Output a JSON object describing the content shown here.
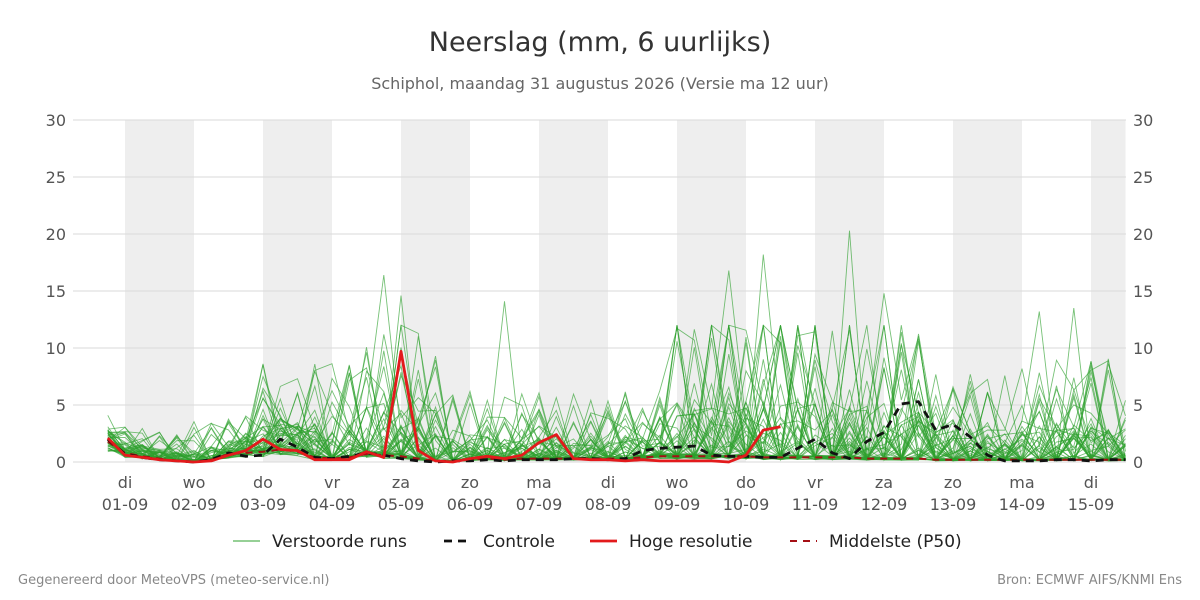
{
  "chart_data": {
    "type": "line",
    "title": "Neerslag (mm, 6 uurlijks)",
    "subtitle": "Schiphol, maandag 31 augustus 2026 (Versie ma 12 uur)",
    "ylim": [
      0,
      30
    ],
    "yticks": [
      0,
      5,
      10,
      15,
      20,
      25,
      30
    ],
    "xlim": [
      -0.25,
      14.5
    ],
    "x_ticks": [
      {
        "day": "di",
        "date": "01-09"
      },
      {
        "day": "wo",
        "date": "02-09"
      },
      {
        "day": "do",
        "date": "03-09"
      },
      {
        "day": "vr",
        "date": "04-09"
      },
      {
        "day": "za",
        "date": "05-09"
      },
      {
        "day": "zo",
        "date": "06-09"
      },
      {
        "day": "ma",
        "date": "07-09"
      },
      {
        "day": "di",
        "date": "08-09"
      },
      {
        "day": "wo",
        "date": "09-09"
      },
      {
        "day": "do",
        "date": "10-09"
      },
      {
        "day": "vr",
        "date": "11-09"
      },
      {
        "day": "za",
        "date": "12-09"
      },
      {
        "day": "zo",
        "date": "13-09"
      },
      {
        "day": "ma",
        "date": "14-09"
      },
      {
        "day": "di",
        "date": "15-09"
      }
    ],
    "weekend_bands": [
      [
        0,
        1
      ],
      [
        2,
        3
      ],
      [
        4,
        5
      ],
      [
        6,
        7
      ],
      [
        8,
        9
      ],
      [
        10,
        11
      ],
      [
        12,
        13
      ],
      [
        14,
        14.5
      ]
    ],
    "grid": true,
    "legend_position": "bottom",
    "series": [
      {
        "name": "Verstoorde runs",
        "color": "#2ca02c",
        "ensemble_members": 50,
        "ensemble_peaks": [
          {
            "x": 3.75,
            "y": 16.4
          },
          {
            "x": 4.0,
            "y": 14.6
          },
          {
            "x": 5.5,
            "y": 14.1
          },
          {
            "x": 8.75,
            "y": 16.8
          },
          {
            "x": 9.25,
            "y": 18.2
          },
          {
            "x": 10.5,
            "y": 20.3
          },
          {
            "x": 11.0,
            "y": 14.8
          },
          {
            "x": 13.25,
            "y": 13.2
          },
          {
            "x": 13.75,
            "y": 13.5
          }
        ]
      },
      {
        "name": "Controle",
        "color": "#111111",
        "x": [
          -0.25,
          0,
          0.25,
          0.5,
          0.75,
          1,
          1.25,
          1.5,
          1.75,
          2,
          2.25,
          2.5,
          2.75,
          3,
          3.25,
          3.5,
          3.75,
          4,
          4.25,
          4.5,
          4.75,
          5,
          5.25,
          5.5,
          5.75,
          6,
          6.25,
          6.5,
          6.75,
          7,
          7.25,
          7.5,
          7.75,
          8,
          8.25,
          8.5,
          8.75,
          9,
          9.25,
          9.5,
          9.75,
          10,
          10.25,
          10.5,
          10.75,
          11,
          11.25,
          11.5,
          11.75,
          12,
          12.25,
          12.5,
          12.75,
          13,
          13.25,
          13.5,
          13.75,
          14,
          14.25,
          14.5
        ],
        "values": [
          2.0,
          0.7,
          0.4,
          0.2,
          0.1,
          0.0,
          0.2,
          0.8,
          0.5,
          0.6,
          2.0,
          1.3,
          0.4,
          0.3,
          0.5,
          0.8,
          0.6,
          0.3,
          0.1,
          0.0,
          0.1,
          0.1,
          0.2,
          0.1,
          0.2,
          0.2,
          0.2,
          0.3,
          0.3,
          0.2,
          0.3,
          1.0,
          1.2,
          1.3,
          1.4,
          0.6,
          0.5,
          0.5,
          0.4,
          0.4,
          1.2,
          2.0,
          0.8,
          0.3,
          1.8,
          2.6,
          5.1,
          5.3,
          2.8,
          3.3,
          2.2,
          0.6,
          0.1,
          0.1,
          0.1,
          0.2,
          0.2,
          0.1,
          0.2,
          0.2
        ]
      },
      {
        "name": "Hoge resolutie",
        "color": "#e31a1c",
        "x": [
          -0.25,
          0,
          0.25,
          0.5,
          0.75,
          1,
          1.25,
          1.5,
          1.75,
          2,
          2.25,
          2.5,
          2.75,
          3,
          3.25,
          3.5,
          3.75,
          4,
          4.25,
          4.5,
          4.75,
          5,
          5.25,
          5.5,
          5.75,
          6,
          6.25,
          6.5,
          6.75,
          7,
          7.25,
          7.5,
          7.75,
          8,
          8.25,
          8.5,
          8.75,
          9,
          9.25,
          9.5
        ],
        "values": [
          2.1,
          0.6,
          0.4,
          0.2,
          0.1,
          0.0,
          0.1,
          0.6,
          1.0,
          2.0,
          1.1,
          1.0,
          0.2,
          0.2,
          0.2,
          0.9,
          0.4,
          9.7,
          1.0,
          0.1,
          0.0,
          0.3,
          0.5,
          0.3,
          0.6,
          1.7,
          2.4,
          0.3,
          0.2,
          0.2,
          0.1,
          0.2,
          0.1,
          0.1,
          0.1,
          0.1,
          0.0,
          0.6,
          2.8,
          3.1
        ]
      },
      {
        "name": "Middelste (P50)",
        "color": "#a50f15",
        "x": [
          -0.25,
          0,
          0.25,
          0.5,
          0.75,
          1,
          1.25,
          1.5,
          1.75,
          2,
          2.25,
          2.5,
          2.75,
          3,
          3.25,
          3.5,
          3.75,
          4,
          4.25,
          4.5,
          4.75,
          5,
          5.25,
          5.5,
          5.75,
          6,
          6.25,
          6.5,
          6.75,
          7,
          7.25,
          7.5,
          7.75,
          8,
          8.25,
          8.5,
          8.75,
          9,
          9.25,
          9.5,
          9.75,
          10,
          10.25,
          10.5,
          10.75,
          11,
          11.25,
          11.5,
          11.75,
          12,
          12.25,
          12.5,
          12.75,
          13,
          13.25,
          13.5,
          13.75,
          14,
          14.25,
          14.5
        ],
        "values": [
          1.8,
          0.8,
          0.5,
          0.3,
          0.1,
          0.0,
          0.2,
          0.7,
          0.8,
          0.9,
          1.1,
          0.9,
          0.4,
          0.3,
          0.4,
          0.7,
          0.6,
          0.5,
          0.3,
          0.1,
          0.1,
          0.2,
          0.3,
          0.2,
          0.3,
          0.3,
          0.3,
          0.3,
          0.3,
          0.3,
          0.3,
          0.4,
          0.5,
          0.5,
          0.5,
          0.5,
          0.5,
          0.5,
          0.4,
          0.4,
          0.4,
          0.4,
          0.4,
          0.4,
          0.3,
          0.3,
          0.3,
          0.3,
          0.2,
          0.2,
          0.2,
          0.2,
          0.2,
          0.2,
          0.2,
          0.2,
          0.2,
          0.2,
          0.2,
          0.2
        ]
      }
    ]
  },
  "footer": {
    "left": "Gegenereerd door MeteoVPS (meteo-service.nl)",
    "right": "Bron: ECMWF AIFS/KNMI Ens"
  }
}
